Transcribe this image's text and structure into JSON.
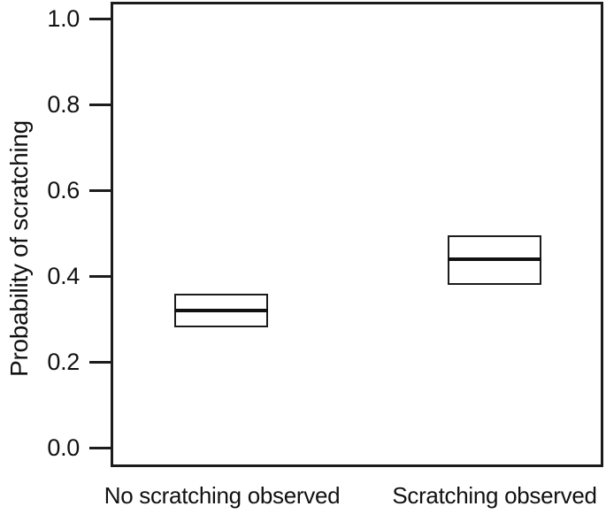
{
  "chart_data": {
    "type": "boxplot",
    "title": "",
    "xlabel": "",
    "ylabel": "Probability of scratching",
    "categories": [
      "No scratching observed",
      "Scratching observed"
    ],
    "series": [
      {
        "name": "No scratching observed",
        "median": 0.32,
        "lower": 0.28,
        "upper": 0.36
      },
      {
        "name": "Scratching observed",
        "median": 0.44,
        "lower": 0.38,
        "upper": 0.495
      }
    ],
    "ylim": [
      -0.045,
      1.04
    ],
    "yticks": [
      0.0,
      0.2,
      0.4,
      0.6,
      0.8,
      1.0
    ],
    "ytick_labels": [
      "0.0",
      "0.2",
      "0.4",
      "0.6",
      "0.8",
      "1.0"
    ],
    "grid": false,
    "legend": "none",
    "frame_color": "#1c1c1c",
    "text_color": "#111111",
    "background_color": "#ffffff"
  }
}
